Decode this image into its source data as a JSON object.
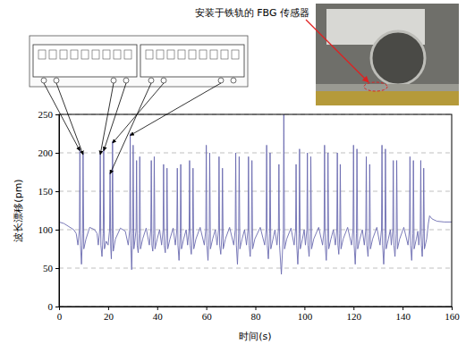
{
  "chart_data": {
    "type": "line",
    "annotation": "安装于铁轨的 FBG 传感器",
    "x_label": "时间(s)",
    "y_label": "波长漂移(pm)",
    "color": "#6b6bb0",
    "grid": true,
    "xlim": [
      0,
      160
    ],
    "ylim": [
      0,
      250
    ],
    "xticks": [
      0,
      20,
      40,
      60,
      80,
      100,
      120,
      140,
      160
    ],
    "yticks": [
      0,
      50,
      100,
      150,
      200,
      250
    ],
    "x": [
      0,
      2,
      4,
      6,
      7,
      7.7,
      8.3,
      8.5,
      8.75,
      9.15,
      9.6,
      9.8,
      10.1,
      11,
      12.5,
      14.5,
      15.5,
      16.0,
      16.6,
      16.8,
      17.05,
      17.5,
      18.0,
      18.2,
      18.5,
      19.2,
      20.0,
      20.6,
      20.8,
      21.05,
      21.3,
      21.6,
      21.8,
      22.1,
      23.0,
      25,
      27,
      28.2,
      28.8,
      29.0,
      29.25,
      29.6,
      30.0,
      30.2,
      30.5,
      30.9,
      31.4,
      31.6,
      31.85,
      32.25,
      32.7,
      32.9,
      33.2,
      34.1,
      35.5,
      36.8,
      37.4,
      37.6,
      37.85,
      38.2,
      38.6,
      38.8,
      39.1,
      40.0,
      41,
      41.8,
      42.4,
      42.6,
      42.85,
      43.3,
      43.8,
      44.0,
      44.3,
      45.2,
      46.5,
      47.4,
      48.0,
      48.2,
      48.45,
      48.9,
      49.4,
      49.6,
      49.9,
      50.8,
      51.8,
      52.4,
      53.0,
      53.2,
      53.45,
      53.9,
      54.4,
      54.6,
      54.9,
      55.8,
      57.5,
      59.2,
      59.8,
      60.0,
      60.25,
      60.7,
      61.2,
      61.4,
      61.7,
      62.6,
      63.7,
      64.4,
      65.0,
      65.2,
      65.45,
      65.9,
      66.4,
      66.6,
      66.9,
      67.8,
      69.5,
      71.2,
      71.8,
      72.0,
      72.25,
      72.7,
      73.2,
      73.4,
      73.7,
      74.6,
      75.6,
      76.4,
      77.0,
      77.2,
      77.45,
      77.9,
      78.4,
      78.6,
      78.9,
      79.8,
      82,
      83.8,
      84.4,
      84.6,
      84.85,
      85.3,
      85.8,
      86.0,
      86.3,
      87.2,
      88,
      88.8,
      89.4,
      89.6,
      89.85,
      90.6,
      91.4,
      91.6,
      91.9,
      92.8,
      94.5,
      95.8,
      96.4,
      96.6,
      96.85,
      97.3,
      97.8,
      98.0,
      98.3,
      99.2,
      99.9,
      100.4,
      101.0,
      101.2,
      101.45,
      101.9,
      102.4,
      102.6,
      102.9,
      103.8,
      105.8,
      107.4,
      108.0,
      108.2,
      108.45,
      108.9,
      109.4,
      109.6,
      109.9,
      110.8,
      111.8,
      112.6,
      113.2,
      113.4,
      113.65,
      114.0,
      114.4,
      114.6,
      114.9,
      115.8,
      117.6,
      119.2,
      119.8,
      120.0,
      120.25,
      120.7,
      121.2,
      121.4,
      121.7,
      122.6,
      123.6,
      124.4,
      125.0,
      125.2,
      125.45,
      125.9,
      126.4,
      126.6,
      126.9,
      127.8,
      129.5,
      130.8,
      131.4,
      131.6,
      131.85,
      132.3,
      132.8,
      133.0,
      133.3,
      134.2,
      135,
      135.4,
      136.0,
      136.2,
      136.45,
      136.9,
      137.4,
      137.6,
      137.9,
      138.8,
      140.5,
      142.2,
      142.8,
      143.0,
      143.25,
      143.7,
      144.2,
      144.4,
      144.7,
      145.6,
      146.2,
      146.6,
      147.2,
      147.4,
      147.65,
      148.0,
      148.4,
      148.6,
      148.9,
      149.8,
      150.5,
      151,
      152,
      154,
      157,
      160
    ],
    "values": [
      110,
      108,
      104,
      100,
      95,
      80,
      100,
      205,
      80,
      55,
      95,
      200,
      75,
      88,
      103,
      100,
      95,
      80,
      100,
      200,
      80,
      65,
      95,
      205,
      75,
      85,
      80,
      100,
      175,
      78,
      62,
      95,
      215,
      72,
      88,
      102,
      98,
      80,
      100,
      225,
      80,
      48,
      95,
      210,
      75,
      85,
      100,
      190,
      80,
      70,
      95,
      195,
      75,
      88,
      102,
      80,
      100,
      190,
      80,
      72,
      95,
      195,
      75,
      88,
      100,
      80,
      100,
      185,
      80,
      70,
      95,
      180,
      75,
      88,
      102,
      80,
      100,
      180,
      80,
      60,
      95,
      185,
      75,
      88,
      100,
      80,
      100,
      190,
      80,
      68,
      95,
      180,
      75,
      88,
      103,
      80,
      100,
      210,
      80,
      60,
      95,
      200,
      75,
      88,
      100,
      80,
      100,
      195,
      80,
      68,
      95,
      180,
      75,
      88,
      103,
      80,
      100,
      200,
      80,
      55,
      95,
      195,
      75,
      88,
      100,
      80,
      100,
      195,
      80,
      65,
      95,
      190,
      75,
      88,
      103,
      80,
      100,
      210,
      80,
      62,
      95,
      200,
      75,
      88,
      100,
      80,
      100,
      185,
      80,
      42,
      95,
      250,
      75,
      88,
      102,
      80,
      100,
      185,
      80,
      55,
      95,
      205,
      75,
      88,
      100,
      80,
      100,
      200,
      80,
      65,
      95,
      195,
      75,
      88,
      103,
      80,
      100,
      210,
      80,
      60,
      95,
      200,
      75,
      88,
      100,
      80,
      100,
      200,
      80,
      68,
      95,
      185,
      75,
      88,
      103,
      80,
      100,
      210,
      80,
      55,
      95,
      205,
      75,
      88,
      100,
      80,
      100,
      195,
      80,
      65,
      95,
      185,
      75,
      88,
      103,
      80,
      100,
      210,
      80,
      55,
      95,
      205,
      75,
      88,
      100,
      80,
      100,
      190,
      80,
      65,
      95,
      190,
      75,
      88,
      103,
      80,
      100,
      195,
      80,
      60,
      95,
      190,
      75,
      88,
      98,
      80,
      100,
      190,
      80,
      65,
      95,
      180,
      75,
      88,
      108,
      118,
      114,
      111,
      110,
      110
    ]
  }
}
